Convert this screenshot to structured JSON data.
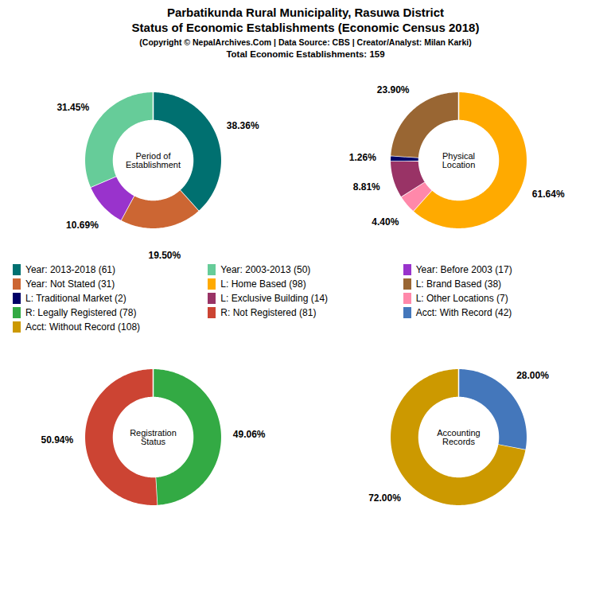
{
  "title": "Parbatikunda Rural Municipality, Rasuwa District\nStatus of Economic Establishments (Economic Census 2018)",
  "subtitle": "(Copyright © NepalArchives.Com | Data Source: CBS | Creator/Analyst: Milan Karki)",
  "annotations": [
    "Total Economic Establishments: 159"
  ],
  "legend_items": [
    {
      "label": "Year: 2013-2018 (61)",
      "color": "#007070"
    },
    {
      "label": "Year: 2003-2013 (50)",
      "color": "#66CC99"
    },
    {
      "label": "Year: Before 2003 (17)",
      "color": "#9933CC"
    },
    {
      "label": "Year: Not Stated (31)",
      "color": "#CC6633"
    },
    {
      "label": "L: Home Based (98)",
      "color": "#FFAA00"
    },
    {
      "label": "L: Brand Based (38)",
      "color": "#996633"
    },
    {
      "label": "L: Traditional Market (2)",
      "color": "#000066"
    },
    {
      "label": "L: Exclusive Building (14)",
      "color": "#993366"
    },
    {
      "label": "L: Other Locations (7)",
      "color": "#FF88AA"
    },
    {
      "label": "R: Legally Registered (78)",
      "color": "#33AA44"
    },
    {
      "label": "R: Not Registered (81)",
      "color": "#CC4433"
    },
    {
      "label": "Acct: With Record (42)",
      "color": "#4477BB"
    },
    {
      "label": "Acct: Without Record (108)",
      "color": "#CC9900"
    }
  ],
  "chart_data": [
    {
      "type": "pie",
      "title": "Period of\nEstablishment",
      "values": [
        38.36,
        19.5,
        10.69,
        31.45
      ],
      "value_labels": [
        "38.36%",
        "19.50%",
        "10.69%",
        "31.45%"
      ],
      "colors": [
        "#007070",
        "#CC6633",
        "#9933CC",
        "#66CC99"
      ],
      "data_labels": true
    },
    {
      "type": "pie",
      "title": "Physical\nLocation",
      "values": [
        61.64,
        4.4,
        8.81,
        1.26,
        23.9
      ],
      "value_labels": [
        "61.64%",
        "4.40%",
        "8.81%",
        "1.26%",
        "23.90%"
      ],
      "colors": [
        "#FFAA00",
        "#FF88AA",
        "#993366",
        "#000066",
        "#996633"
      ],
      "data_labels": true
    },
    {
      "type": "pie",
      "title": "Registration\nStatus",
      "values": [
        49.06,
        50.94
      ],
      "value_labels": [
        "49.06%",
        "50.94%"
      ],
      "colors": [
        "#33AA44",
        "#CC4433"
      ],
      "data_labels": true
    },
    {
      "type": "pie",
      "title": "Accounting\nRecords",
      "values": [
        28.0,
        72.0
      ],
      "value_labels": [
        "28.00%",
        "72.00%"
      ],
      "colors": [
        "#4477BB",
        "#CC9900"
      ],
      "data_labels": true
    }
  ]
}
